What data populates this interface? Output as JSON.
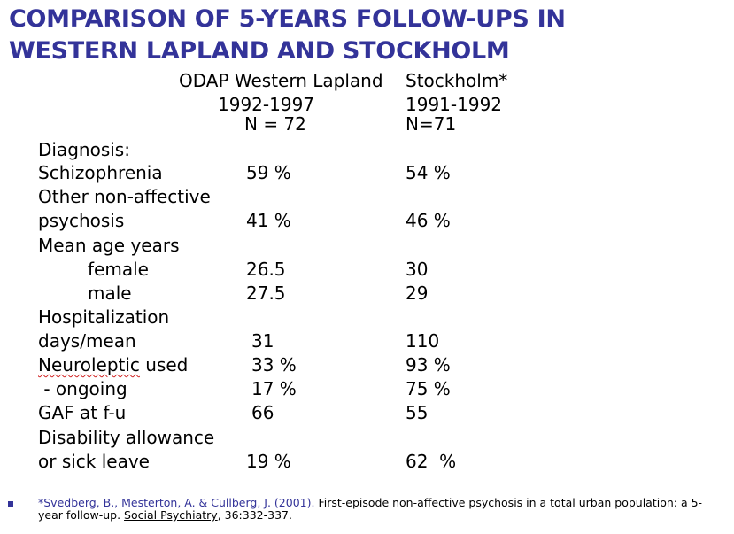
{
  "title": {
    "line1": "COMPARISON OF 5-YEARS FOLLOW-UPS IN",
    "line2": "WESTERN LAPLAND AND STOCKHOLM"
  },
  "columns": {
    "a": {
      "name": "ODAP Western Lapland",
      "years": "1992-1997",
      "n": "N = 72"
    },
    "b": {
      "name": "Stockholm*",
      "years": "1991-1992",
      "n": "N=71"
    }
  },
  "rows": {
    "diagnosis": "Diagnosis:",
    "schizophrenia": {
      "label": "Schizophrenia",
      "a": "59 %",
      "b": "54 %"
    },
    "other_line1": "Other non-affective",
    "psychosis": {
      "label": "psychosis",
      "a": "41 %",
      "b": "46 %"
    },
    "mean_age": "Mean age years",
    "female": {
      "label": "female",
      "a": "26.5",
      "b": "30"
    },
    "male": {
      "label": "male",
      "a": "27.5",
      "b": "29"
    },
    "hosp_line1": "Hospitalization",
    "days": {
      "label": "days/mean",
      "a": "31",
      "b": "110"
    },
    "neuro": {
      "label_word": "Neuroleptic",
      "label_rest": " used",
      "a": "33 %",
      "b": "93 %"
    },
    "ongoing": {
      "label": " - ongoing",
      "a": "17 %",
      "b": "75 %"
    },
    "gaf": {
      "label": "GAF at f-u",
      "a": "66",
      "b": "55"
    },
    "disab_line1": "Disability allowance",
    "sick": {
      "label": "or sick leave",
      "a": "19 %",
      "b": "62  %"
    }
  },
  "footnote": {
    "authors": "*Svedberg, B., Mesterton, A. & Cullberg, J. (2001).",
    "text1": " First-episode non-affective psychosis in a total urban population: a 5-year follow-up. ",
    "journal": "Social Psychiatry",
    "text2": ", 36:332-337."
  }
}
